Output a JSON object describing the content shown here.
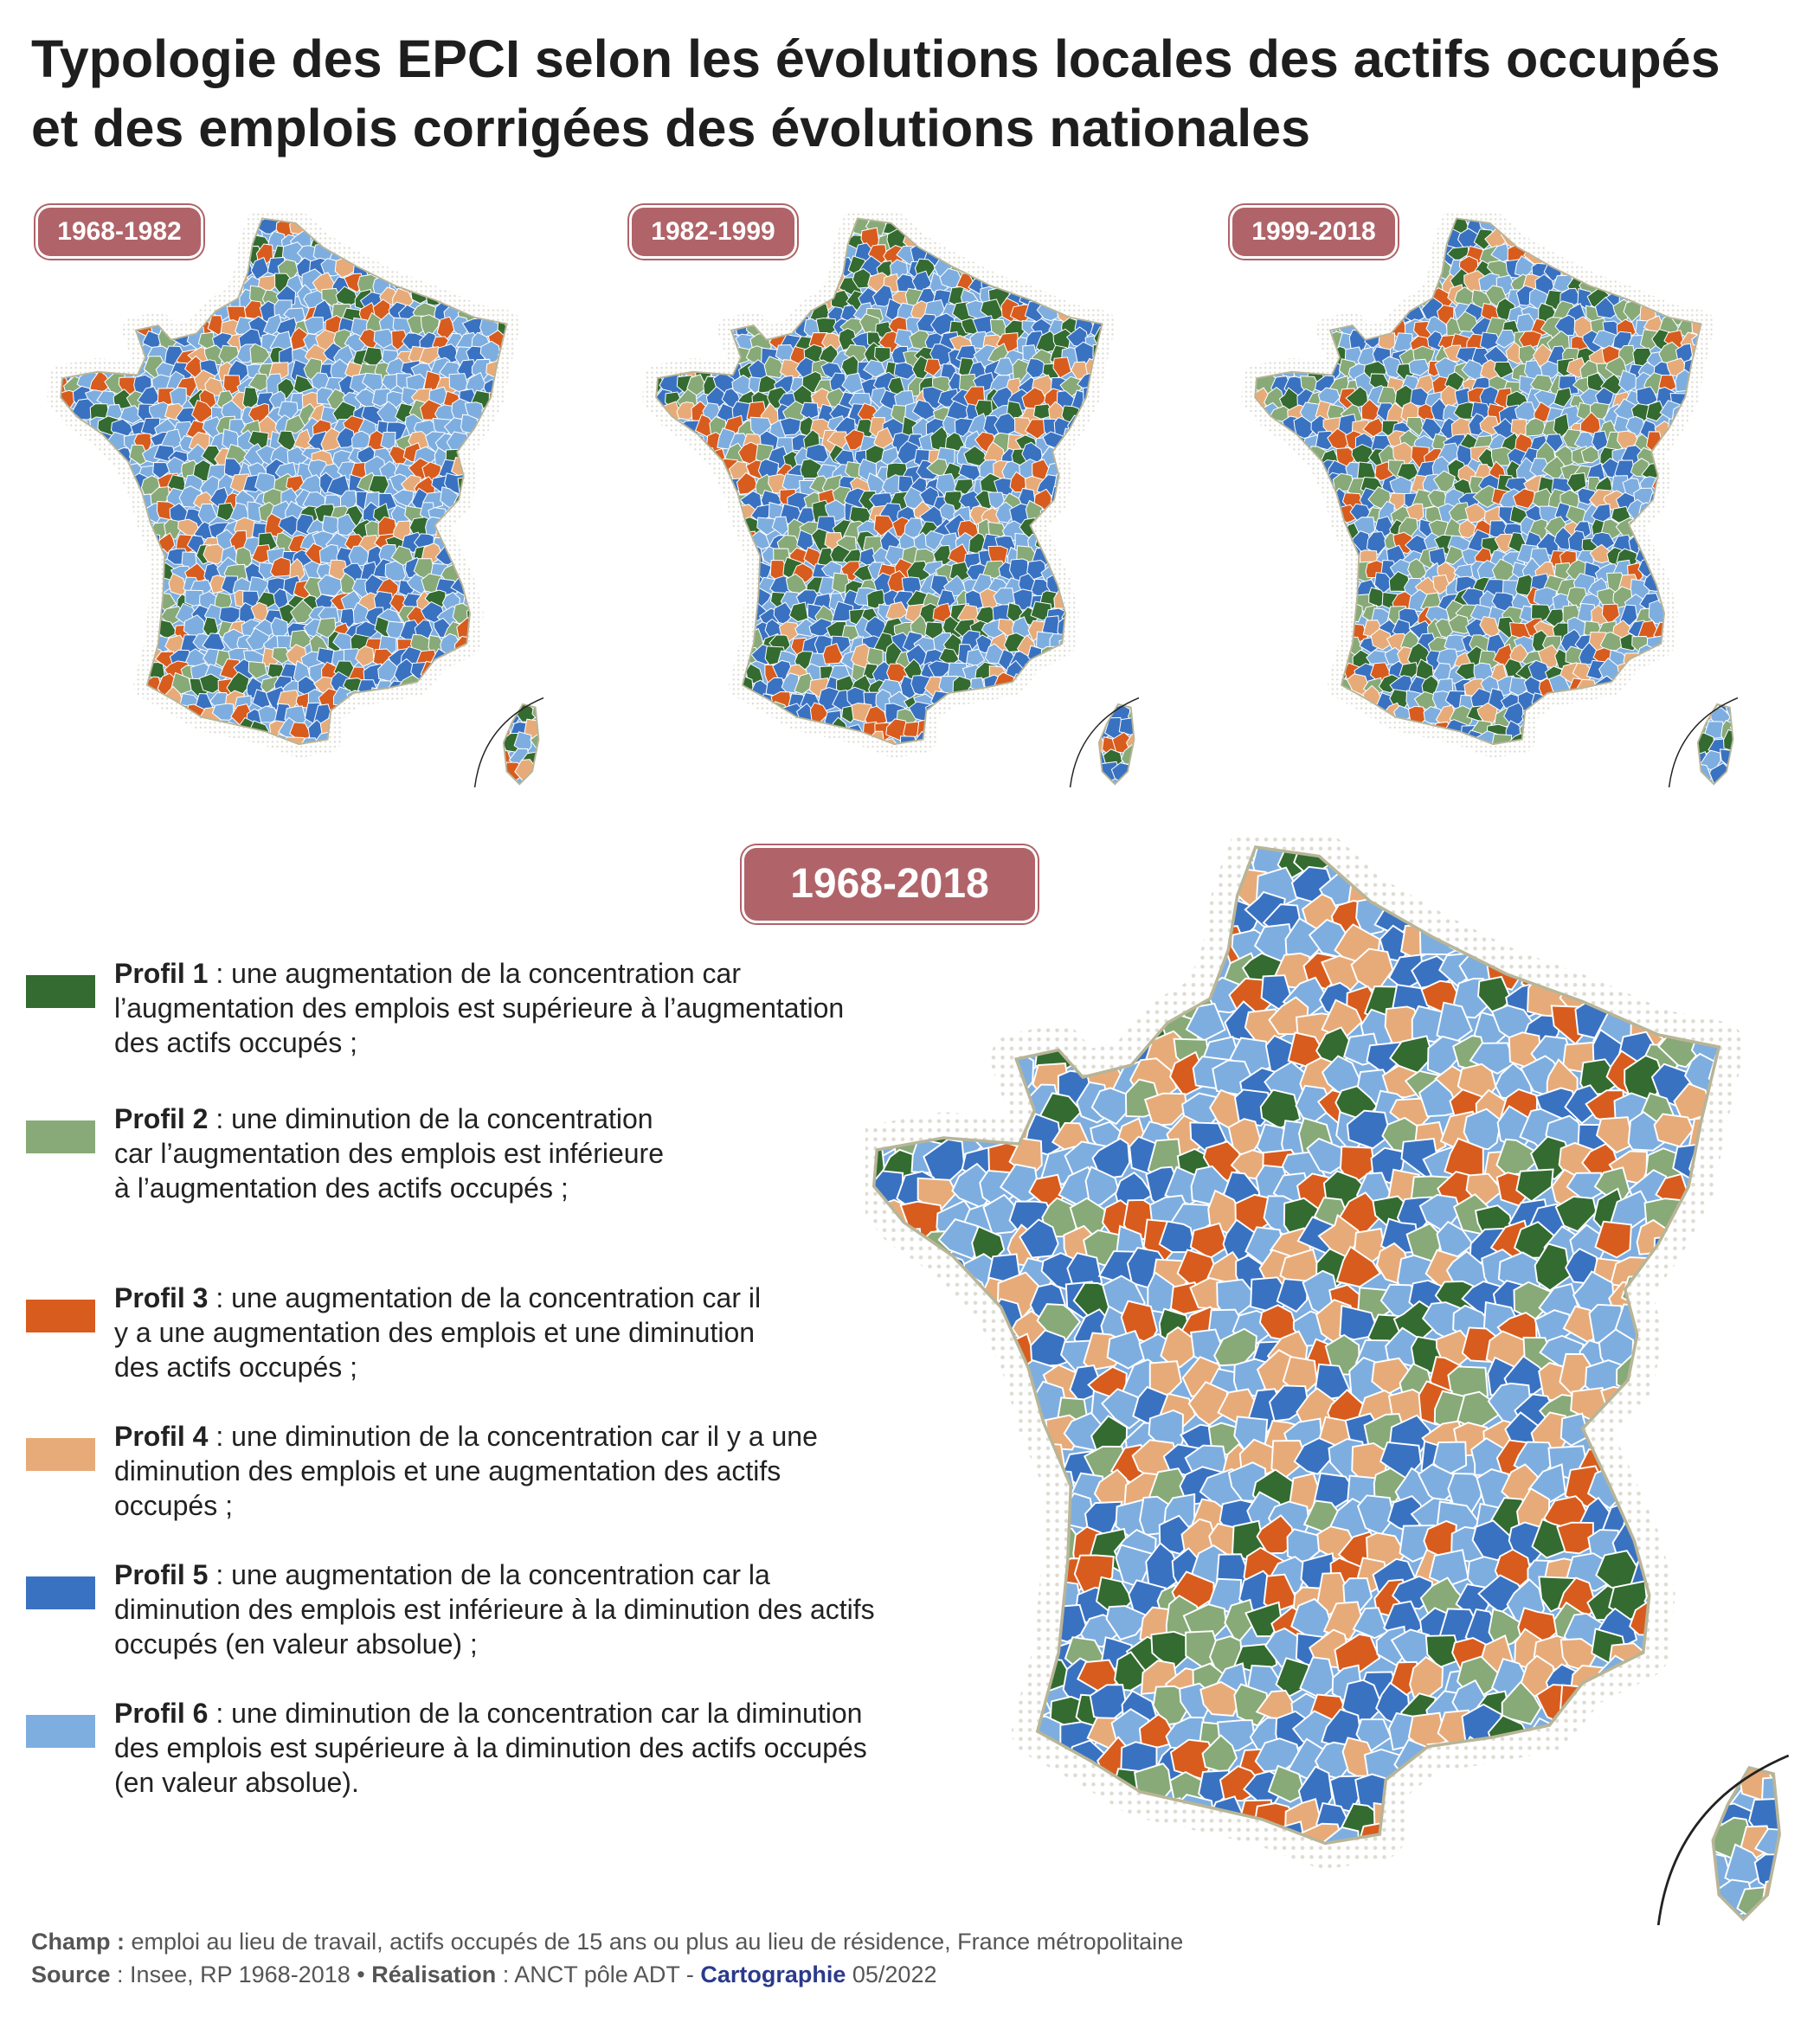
{
  "title": "Typologie des EPCI selon les évolutions locales des actifs occupés et des emplois corrigées des évolutions nationales",
  "colors": {
    "profil_1": "#336b30",
    "profil_2": "#87aa78",
    "profil_3": "#d85c1e",
    "profil_4": "#e7ab79",
    "profil_5": "#3a72c2",
    "profil_6": "#7eaee0",
    "badge": "#b06469",
    "map_border": "#b8b597",
    "halo": "#dedcd2"
  },
  "maps": [
    {
      "period": "1968-1982",
      "size": "small",
      "dominant": [
        "profil_6",
        "profil_5"
      ],
      "mix": [
        "profil_6",
        "profil_6",
        "profil_6",
        "profil_5",
        "profil_5",
        "profil_1",
        "profil_2",
        "profil_4",
        "profil_3"
      ]
    },
    {
      "period": "1982-1999",
      "size": "small",
      "dominant": [
        "profil_6",
        "profil_5"
      ],
      "mix": [
        "profil_6",
        "profil_6",
        "profil_5",
        "profil_5",
        "profil_5",
        "profil_1",
        "profil_1",
        "profil_2",
        "profil_4",
        "profil_3"
      ]
    },
    {
      "period": "1999-2018",
      "size": "small",
      "dominant": [
        "profil_6",
        "profil_5",
        "profil_2"
      ],
      "mix": [
        "profil_6",
        "profil_6",
        "profil_5",
        "profil_5",
        "profil_2",
        "profil_2",
        "profil_1",
        "profil_4",
        "profil_3"
      ]
    },
    {
      "period": "1968-2018",
      "size": "large",
      "dominant": [
        "profil_6",
        "profil_5"
      ],
      "mix": [
        "profil_6",
        "profil_6",
        "profil_6",
        "profil_5",
        "profil_5",
        "profil_4",
        "profil_4",
        "profil_2",
        "profil_1",
        "profil_3"
      ]
    }
  ],
  "legend": [
    {
      "key": "profil_1",
      "label": "Profil 1",
      "text": " : une augmentation de la concentration car l’augmentation des emplois est supérieure à l’augmentation des actifs occupés ;"
    },
    {
      "key": "profil_2",
      "label": "Profil 2",
      "text": " : une diminution de la concentration car l’augmentation des emplois est inférieure à l’augmentation des actifs occupés ;"
    },
    {
      "key": "profil_3",
      "label": "Profil 3",
      "text": " : une augmentation de la concentration car il y a une augmentation des emplois et une diminution des actifs occupés ;"
    },
    {
      "key": "profil_4",
      "label": "Profil 4",
      "text": " : une diminution de la concentration car il y a une diminution des emplois et une augmentation des actifs occupés ;"
    },
    {
      "key": "profil_5",
      "label": "Profil 5",
      "text": " : une augmentation de la concentration car la diminution des emplois est inférieure à la diminution des actifs occupés (en valeur absolue) ;"
    },
    {
      "key": "profil_6",
      "label": "Profil 6",
      "text": " : une diminution de la concentration car la diminution des emplois est supérieure à la diminution des actifs occupés (en valeur absolue)."
    }
  ],
  "footer": {
    "champ_label": "Champ :",
    "champ_text": " emploi au lieu de travail, actifs occupés de 15 ans ou plus au lieu de résidence, France métropolitaine",
    "source_label": "Source",
    "source_text": " : Insee, RP 1968-2018 • ",
    "realisation_label": "Réalisation",
    "realisation_text": " : ANCT pôle ADT - ",
    "carto_label": "Cartographie",
    "date": " 05/2022"
  }
}
